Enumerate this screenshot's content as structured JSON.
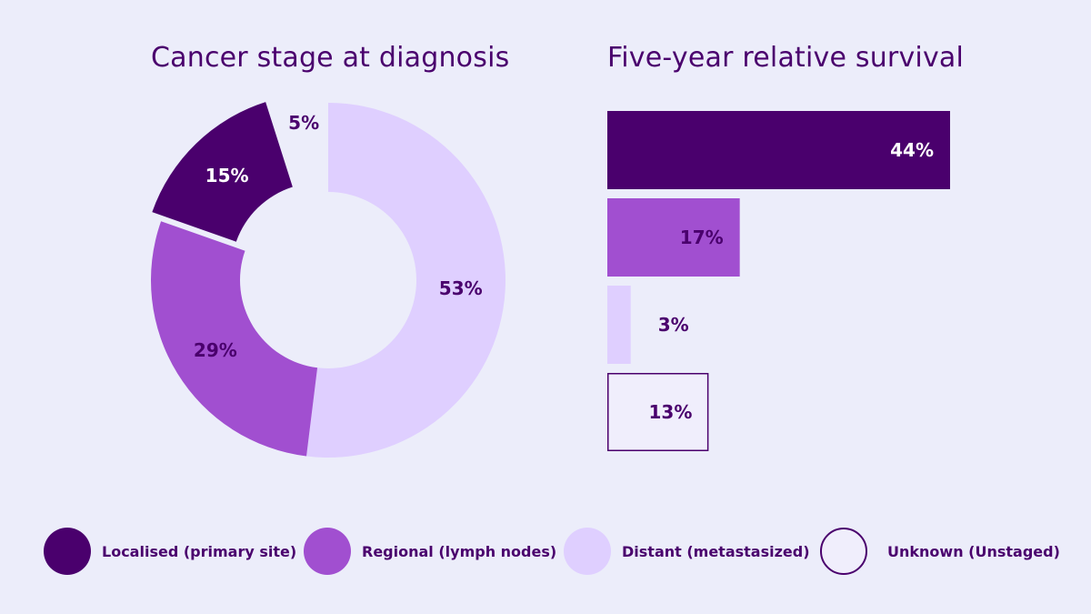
{
  "colors": {
    "background": "#ecedfa",
    "text": "#4a006d",
    "localised": "#4a006d",
    "regional": "#a14fd0",
    "distant": "#dfcfff",
    "unknown_fill": "#f0eefc",
    "unknown_border": "#4a006d"
  },
  "legend": [
    {
      "label": "Localised (primary site)",
      "color_key": "localised"
    },
    {
      "label": "Regional (lymph nodes)",
      "color_key": "regional"
    },
    {
      "label": "Distant (metastasized)",
      "color_key": "distant"
    },
    {
      "label": "Unknown (Unstaged)",
      "color_key": "unknown"
    }
  ],
  "chart_data": [
    {
      "type": "pie",
      "variant": "donut",
      "title": "Cancer stage at diagnosis",
      "slices": [
        {
          "category": "Distant (metastasized)",
          "value": 53,
          "label": "53%",
          "color": "#dfcfff",
          "exploded": false
        },
        {
          "category": "Regional (lymph nodes)",
          "value": 29,
          "label": "29%",
          "color": "#a14fd0",
          "exploded": false
        },
        {
          "category": "Localised (primary site)",
          "value": 15,
          "label": "15%",
          "color": "#4a006d",
          "exploded": true
        },
        {
          "category": "Unknown (Unstaged)",
          "value": 5,
          "label": "5%",
          "color": "#ecedfa",
          "exploded": false
        }
      ]
    },
    {
      "type": "bar",
      "orientation": "horizontal",
      "title": "Five-year relative survival",
      "categories": [
        "Localised (primary site)",
        "Regional (lymph nodes)",
        "Distant (metastasized)",
        "Unknown (Unstaged)"
      ],
      "values": [
        44,
        17,
        3,
        13
      ],
      "labels": [
        "44%",
        "17%",
        "3%",
        "13%"
      ],
      "colors": [
        "#4a006d",
        "#a14fd0",
        "#dfcfff",
        "#f0eefc"
      ],
      "xlim": [
        0,
        44
      ]
    }
  ]
}
